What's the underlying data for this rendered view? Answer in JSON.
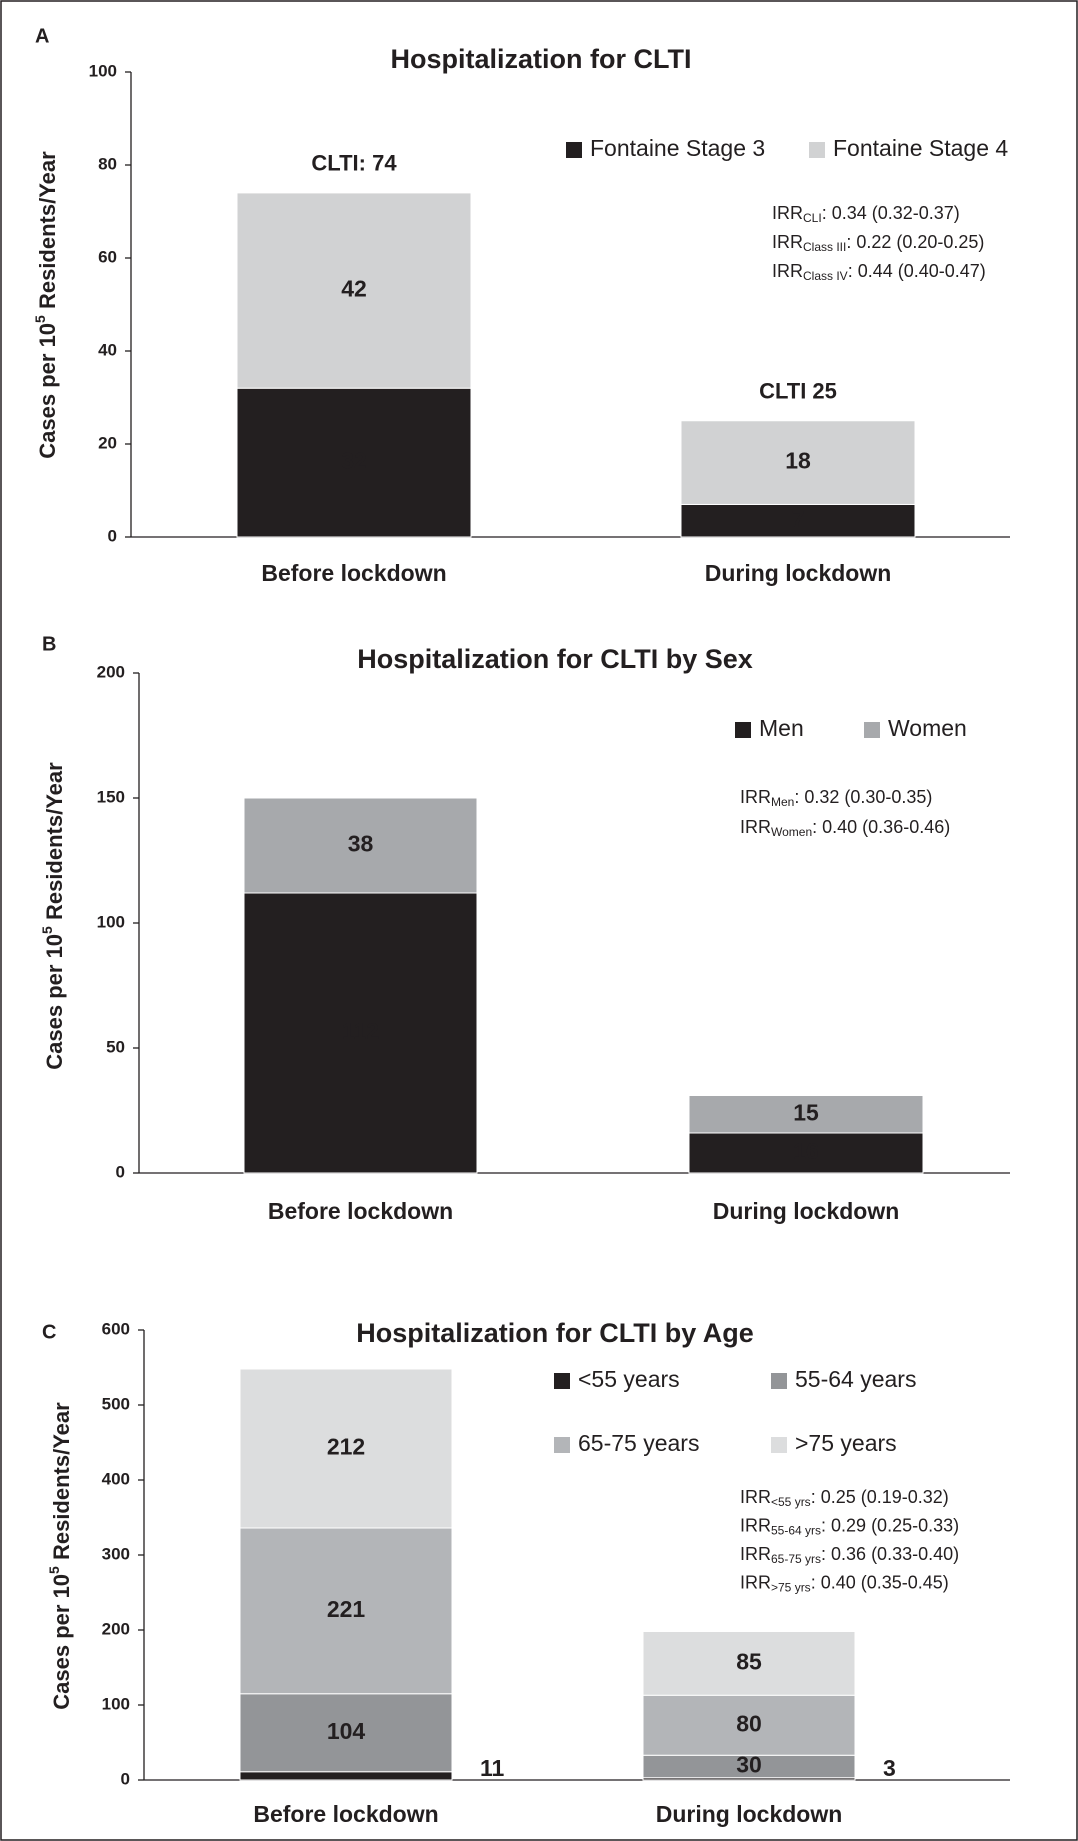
{
  "chart_data": [
    {
      "type": "stacked_bar",
      "panel": "A",
      "title": "Hospitalization for CLTI",
      "ylabel": [
        "Cases per 10",
        "5",
        " Residents/Year"
      ],
      "categories": [
        "Before lockdown",
        "During lockdown"
      ],
      "series": [
        {
          "name": "Fontaine Stage 3",
          "color": "#231f20",
          "values": [
            32,
            7
          ]
        },
        {
          "name": "Fontaine Stage 4",
          "color": "#d1d2d3",
          "values": [
            42,
            18
          ]
        }
      ],
      "total_labels": [
        "CLTI: 74",
        "CLTI 25"
      ],
      "annotations": [
        [
          "IRR",
          "CLI",
          ": 0.34 (0.32-0.37)"
        ],
        [
          "IRR",
          "Class III",
          ": 0.22 (0.20-0.25)"
        ],
        [
          "IRR",
          "Class IV",
          ": 0.44 (0.40-0.47)"
        ]
      ],
      "ylim": [
        0,
        100
      ],
      "yticks": [
        0,
        20,
        40,
        60,
        80,
        100
      ]
    },
    {
      "type": "stacked_bar",
      "panel": "B",
      "title": "Hospitalization for CLTI by Sex",
      "ylabel": [
        "Cases per 10",
        "5",
        " Residents/Year"
      ],
      "categories": [
        "Before lockdown",
        "During lockdown"
      ],
      "series": [
        {
          "name": "Men",
          "color": "#231f20",
          "values": [
            112,
            16
          ]
        },
        {
          "name": "Women",
          "color": "#a7a9ac",
          "values": [
            38,
            15
          ]
        }
      ],
      "annotations": [
        [
          "IRR",
          "Men",
          ": 0.32 (0.30-0.35)"
        ],
        [
          "IRR",
          "Women",
          ": 0.40 (0.36-0.46)"
        ]
      ],
      "ylim": [
        0,
        200
      ],
      "yticks": [
        0,
        50,
        100,
        150,
        200
      ]
    },
    {
      "type": "stacked_bar",
      "panel": "C",
      "title": "Hospitalization for CLTI by Age",
      "ylabel": [
        "Cases per 10",
        "5",
        " Residents/Year"
      ],
      "categories": [
        "Before lockdown",
        "During lockdown"
      ],
      "series": [
        {
          "name": "<55 years",
          "color": "#231f20",
          "values": [
            11,
            3
          ]
        },
        {
          "name": "55-64 years",
          "color": "#939598",
          "values": [
            104,
            30
          ]
        },
        {
          "name": "65-75 years",
          "color": "#b3b5b8",
          "values": [
            221,
            80
          ]
        },
        {
          "name": ">75 years",
          "color": "#dcddde",
          "values": [
            212,
            85
          ]
        }
      ],
      "annotations": [
        [
          "IRR",
          "<55 yrs",
          ": 0.25 (0.19-0.32)"
        ],
        [
          "IRR",
          "55-64 yrs",
          ": 0.29 (0.25-0.33)"
        ],
        [
          "IRR",
          "65-75 yrs",
          ": 0.36 (0.33-0.40)"
        ],
        [
          "IRR",
          ">75 yrs",
          ": 0.40 (0.35-0.45)"
        ]
      ],
      "ylim": [
        0,
        600
      ],
      "yticks": [
        0,
        100,
        200,
        300,
        400,
        500,
        600
      ]
    }
  ]
}
